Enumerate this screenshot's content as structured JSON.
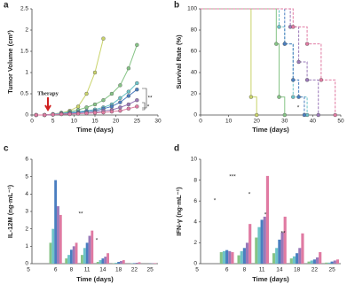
{
  "chart_data": [
    {
      "type": "line",
      "panel": "a",
      "xlabel": "Time (days)",
      "ylabel": "Tumor Volume (cm³)",
      "annotations": [
        "Therapy",
        "**",
        "*"
      ],
      "x": [
        1,
        3,
        5,
        7,
        9,
        11,
        13,
        15,
        17,
        19,
        21,
        23,
        25
      ],
      "xlim": [
        0,
        30
      ],
      "xticks": [
        0,
        5,
        10,
        15,
        20,
        25,
        30
      ],
      "ylim": [
        0,
        2.5
      ],
      "yticks": [
        0,
        0.5,
        1,
        1.5,
        2,
        2.5
      ],
      "series": [
        {
          "color": "#c9d36a",
          "values": [
            0,
            0,
            0.02,
            0.05,
            0.1,
            0.2,
            0.5,
            1.0,
            1.8,
            null,
            null,
            null,
            null
          ]
        },
        {
          "color": "#86c486",
          "values": [
            0,
            0,
            0.02,
            0.05,
            0.08,
            0.12,
            0.18,
            0.25,
            0.35,
            0.5,
            0.7,
            1.1,
            1.65
          ]
        },
        {
          "color": "#6cc3c8",
          "values": [
            0,
            0,
            0.02,
            0.04,
            0.06,
            0.08,
            0.1,
            0.13,
            0.18,
            0.25,
            0.4,
            0.55,
            0.75
          ]
        },
        {
          "color": "#4a7ec0",
          "values": [
            0,
            0,
            0.01,
            0.03,
            0.05,
            0.06,
            0.08,
            0.1,
            0.15,
            0.2,
            0.3,
            0.45,
            0.6
          ]
        },
        {
          "color": "#9a78b8",
          "values": [
            0,
            0,
            0.01,
            0.02,
            0.03,
            0.04,
            0.05,
            0.07,
            0.1,
            0.12,
            0.18,
            0.25,
            0.35
          ]
        },
        {
          "color": "#e07aa2",
          "values": [
            0,
            0,
            0.01,
            0.02,
            0.02,
            0.03,
            0.04,
            0.05,
            0.06,
            0.08,
            0.1,
            0.15,
            0.2
          ]
        }
      ]
    },
    {
      "type": "step",
      "panel": "b",
      "xlabel": "Time (days)",
      "ylabel": "Survival Rate (%)",
      "annotations": [
        "*"
      ],
      "xlim": [
        0,
        50
      ],
      "xticks": [
        0,
        10,
        20,
        30,
        40,
        50
      ],
      "ylim": [
        0,
        100
      ],
      "yticks": [
        0,
        20,
        40,
        60,
        80,
        100
      ],
      "series": [
        {
          "color": "#c9d36a",
          "x": [
            0,
            18,
            20
          ],
          "values": [
            100,
            17,
            0
          ]
        },
        {
          "color": "#86c486",
          "x": [
            0,
            27,
            28,
            30
          ],
          "values": [
            100,
            67,
            17,
            0
          ]
        },
        {
          "color": "#6cc3c8",
          "x": [
            0,
            28,
            30,
            33,
            38
          ],
          "values": [
            100,
            83,
            67,
            17,
            0
          ]
        },
        {
          "color": "#4a7ec0",
          "x": [
            0,
            30,
            33,
            35,
            37
          ],
          "values": [
            100,
            67,
            33,
            17,
            0
          ]
        },
        {
          "color": "#9a78b8",
          "x": [
            0,
            32,
            35,
            38,
            42
          ],
          "values": [
            100,
            83,
            50,
            33,
            0
          ]
        },
        {
          "color": "#e07aa2",
          "x": [
            0,
            33,
            38,
            43,
            48
          ],
          "values": [
            100,
            83,
            67,
            33,
            0
          ]
        }
      ]
    },
    {
      "type": "bar",
      "panel": "c",
      "xlabel": "Time (days)",
      "ylabel": "IL-12M (ng·mL⁻¹)",
      "annotations": [
        "**",
        "*"
      ],
      "categories": [
        "5",
        "6",
        "8",
        "11",
        "14",
        "18",
        "22",
        "25"
      ],
      "ylim": [
        0,
        6
      ],
      "yticks": [
        0,
        1,
        2,
        3,
        4,
        5,
        6
      ],
      "series": [
        {
          "color": "#86c486",
          "values": [
            null,
            1.2,
            0.3,
            0.5,
            0.1,
            0.02,
            0,
            0
          ]
        },
        {
          "color": "#6cc3c8",
          "values": [
            null,
            2.0,
            0.5,
            0.9,
            0.2,
            0.05,
            0.02,
            0
          ]
        },
        {
          "color": "#4a7ec0",
          "values": [
            null,
            4.8,
            0.8,
            1.2,
            0.3,
            0.1,
            0.03,
            0.01
          ]
        },
        {
          "color": "#9a78b8",
          "values": [
            null,
            3.3,
            1.0,
            1.6,
            0.4,
            0.15,
            0.05,
            0.02
          ]
        },
        {
          "color": "#e07aa2",
          "values": [
            null,
            2.8,
            1.2,
            1.9,
            0.6,
            0.2,
            0.08,
            0.03
          ]
        }
      ]
    },
    {
      "type": "bar",
      "panel": "d",
      "xlabel": "Time (days)",
      "ylabel": "IFN-γ (ng·mL⁻¹)",
      "annotations": [
        "*",
        "***",
        "*",
        "*",
        "**"
      ],
      "categories": [
        "5",
        "6",
        "8",
        "11",
        "14",
        "18",
        "22",
        "25"
      ],
      "ylim": [
        0,
        10
      ],
      "yticks": [
        0,
        2,
        4,
        6,
        8,
        10
      ],
      "series": [
        {
          "color": "#86c486",
          "values": [
            null,
            1.1,
            0.8,
            2.5,
            1.0,
            0.5,
            0.2,
            0.1
          ]
        },
        {
          "color": "#6cc3c8",
          "values": [
            null,
            1.2,
            1.2,
            3.5,
            1.5,
            0.7,
            0.3,
            0.1
          ]
        },
        {
          "color": "#4a7ec0",
          "values": [
            null,
            1.3,
            1.5,
            4.2,
            2.3,
            1.0,
            0.4,
            0.2
          ]
        },
        {
          "color": "#9a78b8",
          "values": [
            null,
            1.2,
            2.0,
            4.5,
            3.0,
            1.5,
            0.6,
            0.3
          ]
        },
        {
          "color": "#e07aa2",
          "values": [
            null,
            1.1,
            3.8,
            8.4,
            4.5,
            2.9,
            1.1,
            0.4
          ]
        }
      ]
    }
  ]
}
